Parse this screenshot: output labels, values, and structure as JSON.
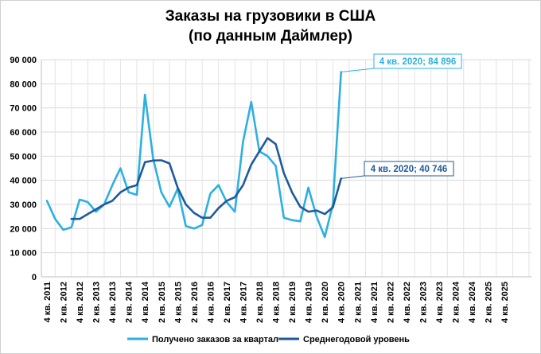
{
  "chart_data": {
    "type": "line",
    "title": "Заказы на грузовики в США",
    "subtitle": "(по данным Даймлер)",
    "ylim": [
      0,
      90000
    ],
    "y_ticks": [
      "0",
      "10 000",
      "20 000",
      "30 000",
      "40 000",
      "50 000",
      "60 000",
      "70 000",
      "80 000",
      "90 000"
    ],
    "x_ticks": [
      "4 кв. 2011",
      "2 кв. 2012",
      "4 кв. 2012",
      "2 кв. 2013",
      "4 кв. 2013",
      "2 кв. 2014",
      "4 кв. 2014",
      "2 кв. 2015",
      "4 кв. 2015",
      "2 кв. 2016",
      "4 кв. 2016",
      "2 кв. 2017",
      "4 кв. 2017",
      "2 кв. 2018",
      "4 кв. 2018",
      "2 кв. 2019",
      "4 кв. 2019",
      "2 кв. 2020",
      "4 кв. 2020",
      "2 кв. 2021",
      "4 кв. 2021",
      "2 кв. 2022",
      "4 кв. 2022",
      "2 кв. 2023",
      "4 кв. 2023",
      "2 кв. 2024",
      "4 кв. 2024",
      "2 кв. 2025",
      "4 кв. 2025"
    ],
    "grid": true,
    "legend_position": "bottom",
    "series": [
      {
        "name": "Получено заказов за квартал",
        "color": "#2db0e0",
        "start_index": 0,
        "values": [
          31500,
          24000,
          19500,
          20500,
          32000,
          31000,
          27000,
          30000,
          38000,
          45000,
          35000,
          34000,
          75500,
          49000,
          35000,
          29000,
          36500,
          21000,
          20000,
          21500,
          34500,
          38000,
          31000,
          27000,
          56000,
          72500,
          52000,
          50000,
          46000,
          24500,
          23500,
          23000,
          37000,
          25000,
          16500,
          30000,
          84896
        ]
      },
      {
        "name": "Среднегодовой уровень",
        "color": "#1f5a9c",
        "start_index": 3,
        "values": [
          24000,
          24000,
          26000,
          28000,
          30000,
          31500,
          35000,
          37000,
          38000,
          47500,
          48200,
          48300,
          47000,
          37000,
          30000,
          26500,
          24500,
          24500,
          28500,
          31500,
          33000,
          38000,
          46500,
          52000,
          57500,
          55000,
          43000,
          35000,
          29000,
          27000,
          27500,
          26000,
          28800,
          40746
        ]
      }
    ],
    "annotations": [
      {
        "text": "4 кв. 2020; 84 896",
        "series": 0,
        "color": "#2db0e0"
      },
      {
        "text": "4 кв. 2020; 40 746",
        "series": 1,
        "color": "#1f5a9c"
      }
    ]
  }
}
